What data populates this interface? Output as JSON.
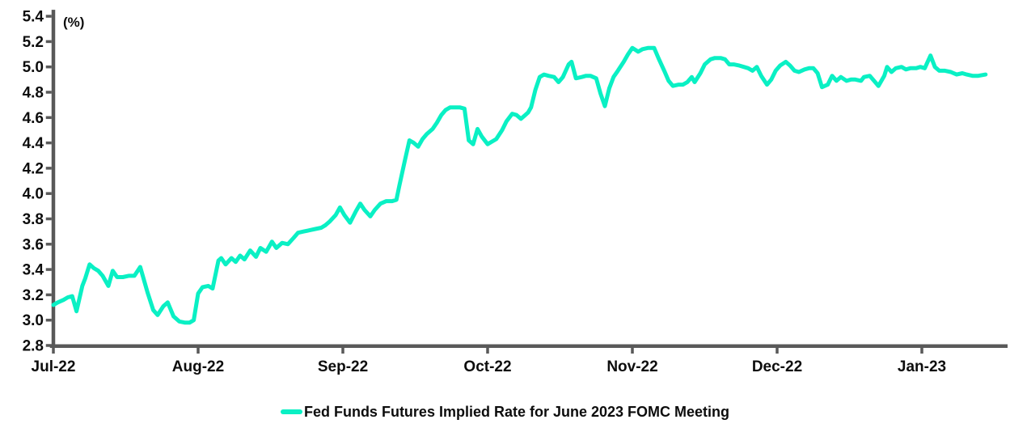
{
  "chart_data": {
    "type": "line",
    "title": "",
    "unit_label": "(%)",
    "grid": false,
    "background_color": "#ffffff",
    "axis_color": "#595959",
    "text_color": "#0d0d0d",
    "legend_position": "bottom-center",
    "y_axis": {
      "min": 2.8,
      "max": 5.4,
      "step": 0.2,
      "tick_labels": [
        "5.4",
        "5.2",
        "5.0",
        "4.8",
        "4.6",
        "4.4",
        "4.2",
        "4.0",
        "3.8",
        "3.6",
        "3.4",
        "3.2",
        "3.0",
        "2.8"
      ]
    },
    "x_axis": {
      "unit": "months (Jul-2022 = 0)",
      "tick_labels": [
        "Jul-22",
        "Aug-22",
        "Sep-22",
        "Oct-22",
        "Nov-22",
        "Dec-22",
        "Jan-23"
      ],
      "tick_positions": [
        0,
        1,
        2,
        3,
        4,
        5,
        6
      ]
    },
    "legend": [
      {
        "label": "Fed Funds Futures Implied Rate for June 2023 FOMC Meeting",
        "color": "#0af0c4"
      }
    ],
    "series": [
      {
        "name": "Fed Funds Futures Implied Rate for June 2023 FOMC Meeting",
        "color": "#0af0c4",
        "points": [
          [
            0.0,
            3.12
          ],
          [
            0.03,
            3.14
          ],
          [
            0.07,
            3.16
          ],
          [
            0.1,
            3.18
          ],
          [
            0.13,
            3.19
          ],
          [
            0.16,
            3.07
          ],
          [
            0.2,
            3.27
          ],
          [
            0.22,
            3.33
          ],
          [
            0.25,
            3.44
          ],
          [
            0.28,
            3.41
          ],
          [
            0.31,
            3.39
          ],
          [
            0.34,
            3.35
          ],
          [
            0.38,
            3.27
          ],
          [
            0.41,
            3.39
          ],
          [
            0.44,
            3.34
          ],
          [
            0.48,
            3.34
          ],
          [
            0.52,
            3.35
          ],
          [
            0.56,
            3.35
          ],
          [
            0.6,
            3.42
          ],
          [
            0.65,
            3.22
          ],
          [
            0.69,
            3.08
          ],
          [
            0.72,
            3.04
          ],
          [
            0.76,
            3.11
          ],
          [
            0.79,
            3.14
          ],
          [
            0.83,
            3.03
          ],
          [
            0.87,
            2.99
          ],
          [
            0.91,
            2.98
          ],
          [
            0.94,
            2.98
          ],
          [
            0.97,
            3.0
          ],
          [
            1.0,
            3.21
          ],
          [
            1.03,
            3.26
          ],
          [
            1.07,
            3.27
          ],
          [
            1.1,
            3.25
          ],
          [
            1.14,
            3.47
          ],
          [
            1.16,
            3.49
          ],
          [
            1.19,
            3.44
          ],
          [
            1.23,
            3.49
          ],
          [
            1.26,
            3.46
          ],
          [
            1.29,
            3.51
          ],
          [
            1.32,
            3.48
          ],
          [
            1.36,
            3.55
          ],
          [
            1.4,
            3.5
          ],
          [
            1.43,
            3.57
          ],
          [
            1.47,
            3.54
          ],
          [
            1.51,
            3.62
          ],
          [
            1.54,
            3.57
          ],
          [
            1.58,
            3.61
          ],
          [
            1.62,
            3.6
          ],
          [
            1.66,
            3.65
          ],
          [
            1.69,
            3.69
          ],
          [
            1.73,
            3.7
          ],
          [
            1.77,
            3.71
          ],
          [
            1.81,
            3.72
          ],
          [
            1.85,
            3.73
          ],
          [
            1.88,
            3.75
          ],
          [
            1.91,
            3.78
          ],
          [
            1.95,
            3.83
          ],
          [
            1.98,
            3.89
          ],
          [
            2.01,
            3.83
          ],
          [
            2.05,
            3.77
          ],
          [
            2.09,
            3.86
          ],
          [
            2.12,
            3.92
          ],
          [
            2.15,
            3.87
          ],
          [
            2.19,
            3.82
          ],
          [
            2.22,
            3.87
          ],
          [
            2.26,
            3.92
          ],
          [
            2.3,
            3.94
          ],
          [
            2.34,
            3.94
          ],
          [
            2.37,
            3.95
          ],
          [
            2.39,
            4.06
          ],
          [
            2.43,
            4.27
          ],
          [
            2.46,
            4.42
          ],
          [
            2.49,
            4.4
          ],
          [
            2.52,
            4.37
          ],
          [
            2.55,
            4.43
          ],
          [
            2.58,
            4.47
          ],
          [
            2.62,
            4.51
          ],
          [
            2.65,
            4.56
          ],
          [
            2.68,
            4.62
          ],
          [
            2.71,
            4.66
          ],
          [
            2.74,
            4.68
          ],
          [
            2.78,
            4.68
          ],
          [
            2.81,
            4.68
          ],
          [
            2.84,
            4.67
          ],
          [
            2.87,
            4.42
          ],
          [
            2.9,
            4.39
          ],
          [
            2.93,
            4.51
          ],
          [
            2.96,
            4.45
          ],
          [
            3.0,
            4.39
          ],
          [
            3.03,
            4.41
          ],
          [
            3.06,
            4.43
          ],
          [
            3.1,
            4.5
          ],
          [
            3.13,
            4.57
          ],
          [
            3.17,
            4.63
          ],
          [
            3.2,
            4.62
          ],
          [
            3.23,
            4.59
          ],
          [
            3.26,
            4.62
          ],
          [
            3.28,
            4.64
          ],
          [
            3.3,
            4.68
          ],
          [
            3.33,
            4.82
          ],
          [
            3.36,
            4.92
          ],
          [
            3.39,
            4.94
          ],
          [
            3.42,
            4.93
          ],
          [
            3.46,
            4.92
          ],
          [
            3.49,
            4.88
          ],
          [
            3.52,
            4.92
          ],
          [
            3.56,
            5.02
          ],
          [
            3.58,
            5.04
          ],
          [
            3.61,
            4.91
          ],
          [
            3.65,
            4.92
          ],
          [
            3.68,
            4.93
          ],
          [
            3.71,
            4.93
          ],
          [
            3.75,
            4.91
          ],
          [
            3.78,
            4.79
          ],
          [
            3.81,
            4.69
          ],
          [
            3.84,
            4.83
          ],
          [
            3.87,
            4.92
          ],
          [
            3.9,
            4.97
          ],
          [
            3.94,
            5.04
          ],
          [
            3.97,
            5.1
          ],
          [
            4.0,
            5.15
          ],
          [
            4.04,
            5.12
          ],
          [
            4.07,
            5.14
          ],
          [
            4.11,
            5.15
          ],
          [
            4.15,
            5.15
          ],
          [
            4.18,
            5.07
          ],
          [
            4.22,
            4.97
          ],
          [
            4.25,
            4.89
          ],
          [
            4.28,
            4.85
          ],
          [
            4.32,
            4.86
          ],
          [
            4.35,
            4.86
          ],
          [
            4.38,
            4.88
          ],
          [
            4.41,
            4.92
          ],
          [
            4.43,
            4.88
          ],
          [
            4.47,
            4.95
          ],
          [
            4.5,
            5.02
          ],
          [
            4.54,
            5.06
          ],
          [
            4.57,
            5.07
          ],
          [
            4.61,
            5.07
          ],
          [
            4.64,
            5.06
          ],
          [
            4.67,
            5.02
          ],
          [
            4.7,
            5.02
          ],
          [
            4.74,
            5.01
          ],
          [
            4.77,
            5.0
          ],
          [
            4.8,
            4.99
          ],
          [
            4.83,
            4.97
          ],
          [
            4.86,
            5.0
          ],
          [
            4.89,
            4.93
          ],
          [
            4.93,
            4.86
          ],
          [
            4.96,
            4.9
          ],
          [
            4.99,
            4.97
          ],
          [
            5.02,
            5.01
          ],
          [
            5.06,
            5.04
          ],
          [
            5.09,
            5.01
          ],
          [
            5.12,
            4.97
          ],
          [
            5.15,
            4.96
          ],
          [
            5.19,
            4.98
          ],
          [
            5.22,
            4.99
          ],
          [
            5.25,
            4.99
          ],
          [
            5.28,
            4.95
          ],
          [
            5.31,
            4.84
          ],
          [
            5.35,
            4.86
          ],
          [
            5.38,
            4.93
          ],
          [
            5.41,
            4.89
          ],
          [
            5.44,
            4.92
          ],
          [
            5.48,
            4.89
          ],
          [
            5.51,
            4.9
          ],
          [
            5.54,
            4.9
          ],
          [
            5.58,
            4.89
          ],
          [
            5.6,
            4.92
          ],
          [
            5.64,
            4.93
          ],
          [
            5.67,
            4.89
          ],
          [
            5.7,
            4.85
          ],
          [
            5.74,
            4.93
          ],
          [
            5.76,
            5.0
          ],
          [
            5.79,
            4.96
          ],
          [
            5.82,
            4.99
          ],
          [
            5.86,
            5.0
          ],
          [
            5.89,
            4.98
          ],
          [
            5.92,
            4.99
          ],
          [
            5.96,
            4.99
          ],
          [
            5.99,
            5.0
          ],
          [
            6.02,
            4.99
          ],
          [
            6.06,
            5.09
          ],
          [
            6.09,
            5.0
          ],
          [
            6.12,
            4.97
          ],
          [
            6.16,
            4.97
          ],
          [
            6.2,
            4.96
          ],
          [
            6.24,
            4.94
          ],
          [
            6.28,
            4.95
          ],
          [
            6.31,
            4.94
          ],
          [
            6.35,
            4.93
          ],
          [
            6.39,
            4.93
          ],
          [
            6.44,
            4.94
          ]
        ]
      }
    ]
  }
}
